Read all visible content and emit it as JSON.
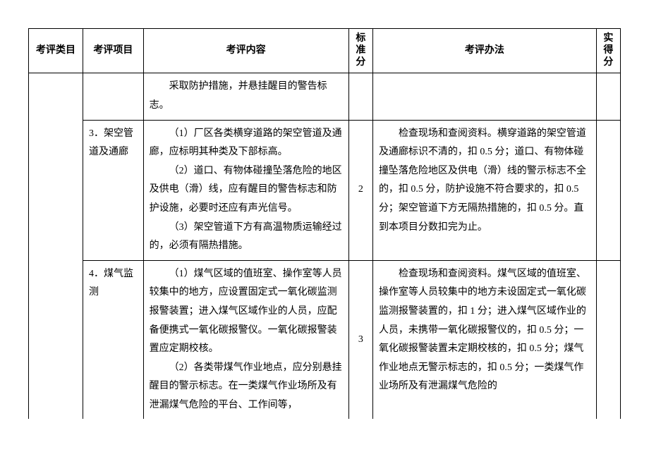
{
  "headers": {
    "category": "考评类目",
    "item": "考评项目",
    "content": "考评内容",
    "stdscore": "标准分",
    "method": "考评办法",
    "score": "实得分"
  },
  "rows": [
    {
      "category": "",
      "item": "",
      "content": "采取防护措施，并悬挂醒目的警告标志。",
      "stdscore": "",
      "method": "",
      "score": ""
    },
    {
      "category": "",
      "item": "3．架空管道及通廊",
      "content_p1": "（1）厂区各类横穿道路的架空管道及通廊，应标明其种类及下部标高。",
      "content_p2": "（2）道口、有物体碰撞坠落危险的地区及供电（滑）线，应有醒目的警告标志和防护设施，必要时还应有声光信号。",
      "content_p3": "（3）架空管道下方有高温物质运输经过的，必须有隔热措施。",
      "stdscore": "2",
      "method": "检查现场和查阅资料。横穿道路的架空管道及通廊标识不清的，扣 0.5 分；道口、有物体碰撞坠落危险地区及供电（滑）线的警示标志不全的，扣 0.5 分，防护设施不符合要求的，扣 0.5 分；架空管道下方无隔热措施的，扣 0.5 分。直到本项目分数扣完为止。",
      "score": ""
    },
    {
      "category": "",
      "item": "4．煤气监测",
      "content_p1": "（1）煤气区域的值班室、操作室等人员较集中的地方，应设置固定式一氧化碳监测报警装置；进入煤气区域作业的人员，应配备便携式一氧化碳报警仪。一氧化碳报警装置应定期校核。",
      "content_p2": "（2）各类带煤气作业地点，应分别悬挂醒目的警示标志。在一类煤气作业场所及有泄漏煤气危险的平台、工作间等，",
      "stdscore": "3",
      "method": "检查现场和查阅资料。煤气区域的值班室、操作室等人员较集中的地方未设固定式一氧化碳监测报警装置的，扣 1 分；进入煤气区域作业的人员，未携带一氧化碳报警仪的，扣 0.5 分；一氧化碳报警装置未定期校核的，扣 0.5 分；煤气作业地点无警示标志的，扣 0.5 分；一类煤气作业场所及有泄漏煤气危险的",
      "score": ""
    }
  ]
}
